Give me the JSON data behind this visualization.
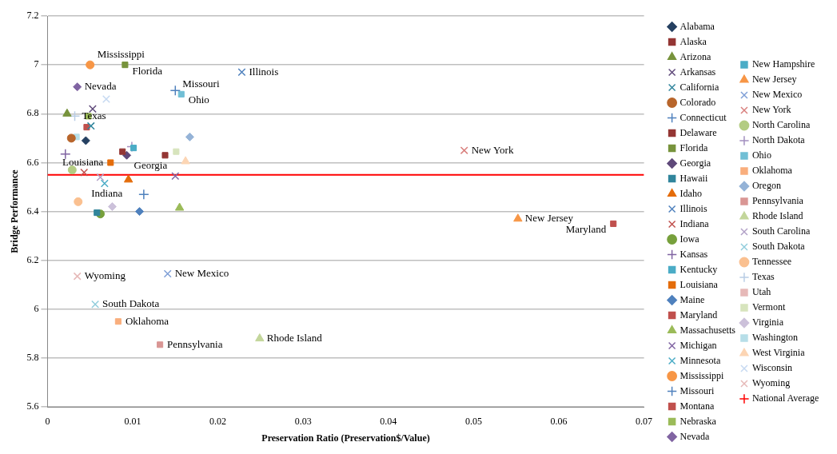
{
  "chart_data": {
    "type": "scatter",
    "xlabel": "Preservation Ratio (Preservation$/Value)",
    "ylabel": "Bridge Performance",
    "xlim": [
      0,
      0.07
    ],
    "xticks": [
      0,
      0.01,
      0.02,
      0.03,
      0.04,
      0.05,
      0.06,
      0.07
    ],
    "ylim": [
      5.6,
      7.2
    ],
    "yticks": [
      5.6,
      5.8,
      6,
      6.2,
      6.4,
      6.6,
      6.8,
      7,
      7.2
    ],
    "grid": "y",
    "legend": "right",
    "ref_lines": [
      {
        "axis": "y",
        "value": 6.55,
        "label": "National Average",
        "color": "#ff0000"
      }
    ],
    "series": [
      {
        "name": "Alabama",
        "color": "#254061",
        "marker": "diamond",
        "x": [
          0.0045
        ],
        "values": [
          6.69
        ]
      },
      {
        "name": "Alaska",
        "color": "#943634",
        "marker": "square",
        "x": [
          0.0088
        ],
        "values": [
          6.645
        ]
      },
      {
        "name": "Arizona",
        "color": "#77933c",
        "marker": "triangle",
        "x": [
          0.0023
        ],
        "values": [
          6.8
        ]
      },
      {
        "name": "Arkansas",
        "color": "#5f497a",
        "marker": "cross",
        "x": [
          0.0053
        ],
        "values": [
          6.82
        ]
      },
      {
        "name": "California",
        "color": "#31859c",
        "marker": "cross",
        "x": [
          0.0051
        ],
        "values": [
          6.75
        ]
      },
      {
        "name": "Colorado",
        "color": "#b8652b",
        "marker": "circle",
        "x": [
          0.0028
        ],
        "values": [
          6.7
        ]
      },
      {
        "name": "Connecticut",
        "color": "#4f81bd",
        "marker": "plus",
        "x": [
          0.0113
        ],
        "values": [
          6.47
        ]
      },
      {
        "name": "Delaware",
        "color": "#943634",
        "marker": "square",
        "x": [
          0.0138
        ],
        "values": [
          6.63
        ]
      },
      {
        "name": "Florida",
        "color": "#77933c",
        "marker": "square",
        "x": [
          0.0091
        ],
        "values": [
          7.0
        ]
      },
      {
        "name": "Georgia",
        "color": "#5f497a",
        "marker": "diamond",
        "x": [
          0.0093
        ],
        "values": [
          6.63
        ]
      },
      {
        "name": "Hawaii",
        "color": "#31859c",
        "marker": "square",
        "x": [
          0.0058
        ],
        "values": [
          6.395
        ]
      },
      {
        "name": "Idaho",
        "color": "#e46c0a",
        "marker": "triangle",
        "x": [
          0.0095
        ],
        "values": [
          6.53
        ]
      },
      {
        "name": "Illinois",
        "color": "#4f81bd",
        "marker": "cross",
        "x": [
          0.0228
        ],
        "values": [
          6.97
        ]
      },
      {
        "name": "Indiana",
        "color": "#c0504d",
        "marker": "cross",
        "x": [
          0.0043
        ],
        "values": [
          6.56
        ]
      },
      {
        "name": "Iowa",
        "color": "#77a03c",
        "marker": "circle",
        "x": [
          0.0062
        ],
        "values": [
          6.39
        ]
      },
      {
        "name": "Kansas",
        "color": "#8064a2",
        "marker": "plus",
        "x": [
          0.0021
        ],
        "values": [
          6.635
        ]
      },
      {
        "name": "Kentucky",
        "color": "#4bacc6",
        "marker": "square",
        "x": [
          null
        ],
        "values": [
          null
        ]
      },
      {
        "name": "Louisiana",
        "color": "#e46c0a",
        "marker": "square",
        "x": [
          0.0074
        ],
        "values": [
          6.6
        ]
      },
      {
        "name": "Maine",
        "color": "#4f81bd",
        "marker": "diamond",
        "x": [
          0.0108
        ],
        "values": [
          6.4
        ]
      },
      {
        "name": "Maryland",
        "color": "#c0504d",
        "marker": "square",
        "x": [
          0.0664
        ],
        "values": [
          6.35
        ]
      },
      {
        "name": "Massachusetts",
        "color": "#9bbb59",
        "marker": "triangle",
        "x": [
          0.0155
        ],
        "values": [
          6.415
        ]
      },
      {
        "name": "Michigan",
        "color": "#8064a2",
        "marker": "cross",
        "x": [
          0.015
        ],
        "values": [
          6.545
        ]
      },
      {
        "name": "Minnesota",
        "color": "#4bacc6",
        "marker": "cross",
        "x": [
          0.0067
        ],
        "values": [
          6.515
        ]
      },
      {
        "name": "Mississippi",
        "color": "#f79646",
        "marker": "circle",
        "x": [
          0.005
        ],
        "values": [
          7.0
        ]
      },
      {
        "name": "Missouri",
        "color": "#4f81bd",
        "marker": "plus",
        "x": [
          0.015
        ],
        "values": [
          6.895
        ]
      },
      {
        "name": "Montana",
        "color": "#c0504d",
        "marker": "square",
        "x": [
          0.0046
        ],
        "values": [
          6.745
        ]
      },
      {
        "name": "Nebraska",
        "color": "#9bbb59",
        "marker": "square",
        "x": [
          0.0048
        ],
        "values": [
          6.79
        ]
      },
      {
        "name": "Nevada",
        "color": "#8064a2",
        "marker": "diamond",
        "x": [
          0.0035
        ],
        "values": [
          6.91
        ]
      },
      {
        "name": "New Hampshire",
        "color": "#4bacc6",
        "marker": "square",
        "x": [
          0.0101
        ],
        "values": [
          6.66
        ]
      },
      {
        "name": "New Jersey",
        "color": "#f79646",
        "marker": "triangle",
        "x": [
          0.0552
        ],
        "values": [
          6.37
        ]
      },
      {
        "name": "New Mexico",
        "color": "#7f9fd6",
        "marker": "cross",
        "x": [
          0.0141
        ],
        "values": [
          6.145
        ]
      },
      {
        "name": "New York",
        "color": "#d9807e",
        "marker": "cross",
        "x": [
          0.0489
        ],
        "values": [
          6.65
        ]
      },
      {
        "name": "North Carolina",
        "color": "#b3cc82",
        "marker": "circle",
        "x": [
          0.0029
        ],
        "values": [
          6.57
        ]
      },
      {
        "name": "North Dakota",
        "color": "#a390c0",
        "marker": "plus",
        "x": [
          0.0099
        ],
        "values": [
          6.665
        ]
      },
      {
        "name": "Ohio",
        "color": "#71bfd5",
        "marker": "square",
        "x": [
          0.0157
        ],
        "values": [
          6.88
        ]
      },
      {
        "name": "Oklahoma",
        "color": "#f9ae7d",
        "marker": "square",
        "x": [
          0.0083
        ],
        "values": [
          5.95
        ]
      },
      {
        "name": "Oregon",
        "color": "#95b3d7",
        "marker": "diamond",
        "x": [
          0.0167
        ],
        "values": [
          6.705
        ]
      },
      {
        "name": "Pennsylvania",
        "color": "#d99694",
        "marker": "square",
        "x": [
          0.0132
        ],
        "values": [
          5.855
        ]
      },
      {
        "name": "Rhode Island",
        "color": "#c3d69b",
        "marker": "triangle",
        "x": [
          0.0249
        ],
        "values": [
          5.88
        ]
      },
      {
        "name": "South Carolina",
        "color": "#b2a1c7",
        "marker": "cross",
        "x": [
          0.0062
        ],
        "values": [
          6.54
        ]
      },
      {
        "name": "South Dakota",
        "color": "#92cddc",
        "marker": "cross",
        "x": [
          0.0056
        ],
        "values": [
          6.02
        ]
      },
      {
        "name": "Tennessee",
        "color": "#fac090",
        "marker": "circle",
        "x": [
          0.0036
        ],
        "values": [
          6.44
        ]
      },
      {
        "name": "Texas",
        "color": "#b9cde5",
        "marker": "plus",
        "x": [
          0.0032
        ],
        "values": [
          6.79
        ]
      },
      {
        "name": "Utah",
        "color": "#e6b9b8",
        "marker": "square",
        "x": [
          null
        ],
        "values": [
          null
        ]
      },
      {
        "name": "Vermont",
        "color": "#d7e4bd",
        "marker": "square",
        "x": [
          0.0151
        ],
        "values": [
          6.645
        ]
      },
      {
        "name": "Virginia",
        "color": "#ccc1da",
        "marker": "diamond",
        "x": [
          0.0076
        ],
        "values": [
          6.42
        ]
      },
      {
        "name": "Washington",
        "color": "#b7dee8",
        "marker": "square",
        "x": [
          0.0034
        ],
        "values": [
          6.705
        ]
      },
      {
        "name": "West Virginia",
        "color": "#fcd5b4",
        "marker": "triangle",
        "x": [
          0.0162
        ],
        "values": [
          6.605
        ]
      },
      {
        "name": "Wisconsin",
        "color": "#c6d9f1",
        "marker": "cross",
        "x": [
          0.0069
        ],
        "values": [
          6.86
        ]
      },
      {
        "name": "Wyoming",
        "color": "#e6b9b8",
        "marker": "cross",
        "x": [
          0.0035
        ],
        "values": [
          6.135
        ]
      }
    ],
    "annotations": [
      {
        "text": "Mississippi",
        "x": 0.005,
        "y": 7.0
      },
      {
        "text": "Florida",
        "x": 0.0091,
        "y": 7.0
      },
      {
        "text": "Nevada",
        "x": 0.0035,
        "y": 6.91
      },
      {
        "text": "Missouri",
        "x": 0.015,
        "y": 6.895
      },
      {
        "text": "Ohio",
        "x": 0.0157,
        "y": 6.88
      },
      {
        "text": "Illinois",
        "x": 0.0228,
        "y": 6.97
      },
      {
        "text": "Texas",
        "x": 0.0032,
        "y": 6.79
      },
      {
        "text": "Georgia",
        "x": 0.0093,
        "y": 6.63
      },
      {
        "text": "Indiana",
        "x": 0.0043,
        "y": 6.56
      },
      {
        "text": "Louisiana",
        "x": 0.0074,
        "y": 6.6
      },
      {
        "text": "New York",
        "x": 0.0489,
        "y": 6.65
      },
      {
        "text": "New Jersey",
        "x": 0.0552,
        "y": 6.37
      },
      {
        "text": "Maryland",
        "x": 0.0664,
        "y": 6.35
      },
      {
        "text": "New Mexico",
        "x": 0.0141,
        "y": 6.145
      },
      {
        "text": "Wyoming",
        "x": 0.0035,
        "y": 6.135
      },
      {
        "text": "South Dakota",
        "x": 0.0056,
        "y": 6.02
      },
      {
        "text": "Oklahoma",
        "x": 0.0083,
        "y": 5.95
      },
      {
        "text": "Pennsylvania",
        "x": 0.0132,
        "y": 5.855
      },
      {
        "text": "Rhode Island",
        "x": 0.0249,
        "y": 5.88
      }
    ]
  }
}
